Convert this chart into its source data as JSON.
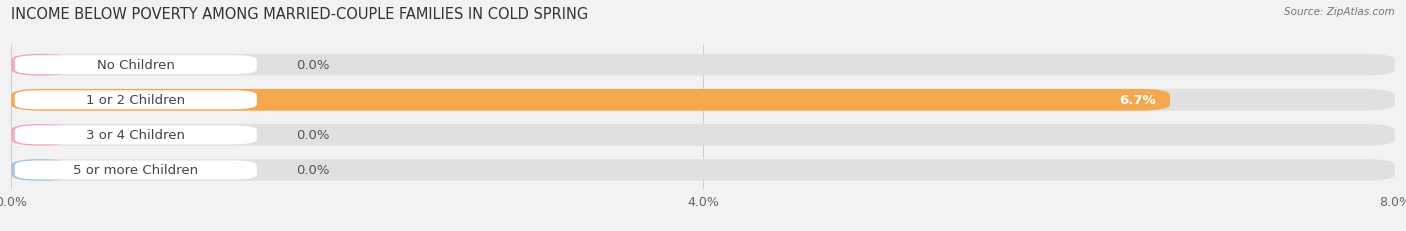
{
  "title": "INCOME BELOW POVERTY AMONG MARRIED-COUPLE FAMILIES IN COLD SPRING",
  "source": "Source: ZipAtlas.com",
  "categories": [
    "No Children",
    "1 or 2 Children",
    "3 or 4 Children",
    "5 or more Children"
  ],
  "values": [
    0.0,
    6.7,
    0.0,
    0.0
  ],
  "bar_colors": [
    "#f4a7bc",
    "#f5a84e",
    "#f4a7bc",
    "#a8c3e0"
  ],
  "xlim": [
    0,
    8.0
  ],
  "xticks": [
    0.0,
    4.0,
    8.0
  ],
  "xticklabels": [
    "0.0%",
    "4.0%",
    "8.0%"
  ],
  "background_color": "#f2f2f2",
  "bar_track_color": "#e0e0e0",
  "title_fontsize": 10.5,
  "tick_fontsize": 9,
  "label_fontsize": 9.5,
  "value_fontsize": 9.5
}
